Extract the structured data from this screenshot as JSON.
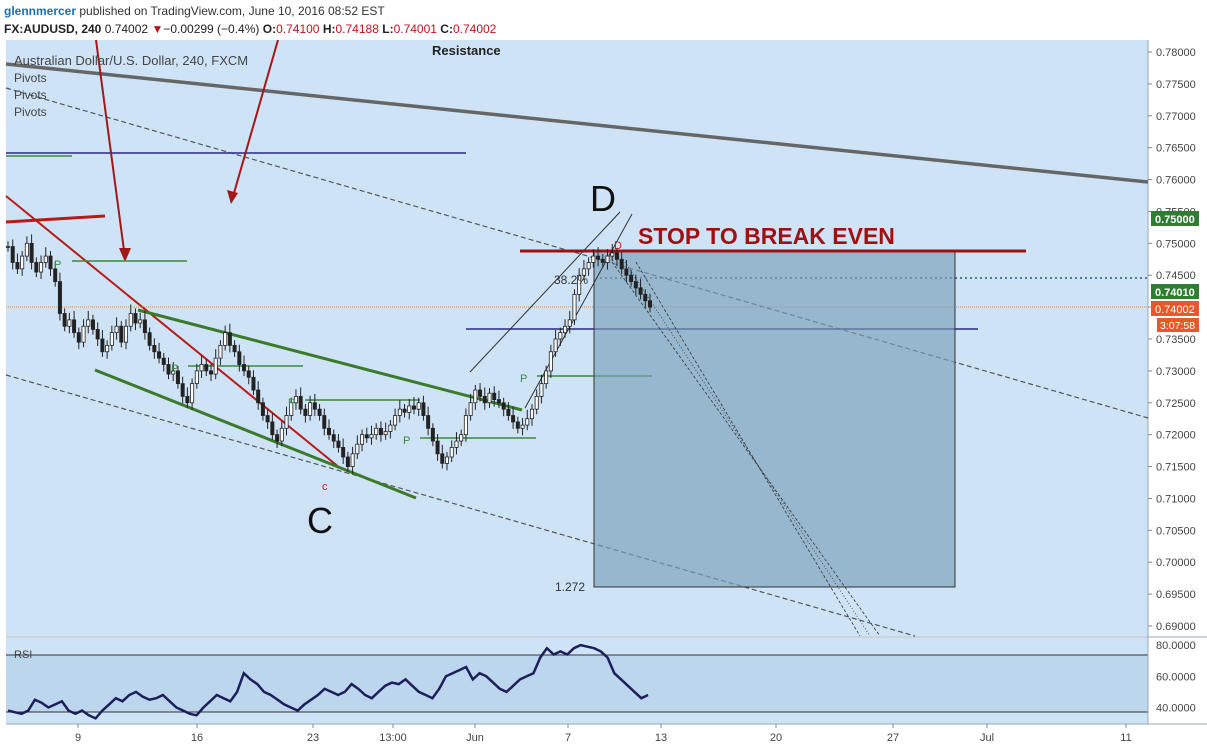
{
  "header": {
    "author": "glennmercer",
    "published_text": "published on TradingView.com, June 10, 2016 08:52 EST",
    "symbol": "FX:AUDUSD, 240",
    "last": "0.74002",
    "change_arrow": "▼",
    "change": "−0.00299 (−0.4%)",
    "o_label": "O:",
    "o_value": "0.74100",
    "h_label": "H:",
    "h_value": "0.74188",
    "l_label": "L:",
    "l_value": "0.74001",
    "c_label": "C:",
    "c_value": "0.74002"
  },
  "chart_data": {
    "type": "candlestick",
    "title": "Australian Dollar/U.S. Dollar, 240, FXCM",
    "indicators": [
      "Pivots",
      "Pivots",
      "Pivots"
    ],
    "annotations": {
      "resistance": "Resistance",
      "stop": "STOP TO BREAK EVEN",
      "point_c": "C",
      "point_d": "D",
      "small_c": "c",
      "small_d": "D",
      "fib_382": "38.2%",
      "fib_1272": "1.272",
      "pivot_marker": "P"
    },
    "y_ticks": [
      "0.78000",
      "0.77500",
      "0.77000",
      "0.76500",
      "0.76000",
      "0.75500",
      "0.75000",
      "0.74500",
      "0.74000",
      "0.73500",
      "0.73000",
      "0.72500",
      "0.72000",
      "0.71500",
      "0.71000",
      "0.70500",
      "0.70000",
      "0.69500",
      "0.69000"
    ],
    "ylim": [
      0.689,
      0.781
    ],
    "x_ticks": [
      "9",
      "16",
      "23",
      "13:00",
      "Jun",
      "7",
      "13",
      "20",
      "27",
      "Jul",
      "11"
    ],
    "price_labels": [
      {
        "text": "0.75000",
        "color": "#2e7d32"
      },
      {
        "text": "0.74010",
        "color": "#2e7d32"
      },
      {
        "text": "0.74002",
        "color": "#e55a2b"
      },
      {
        "text": "3:07:58",
        "color": "#e55a2b"
      }
    ],
    "closes": [
      0.7495,
      0.747,
      0.746,
      0.748,
      0.75,
      0.747,
      0.7455,
      0.747,
      0.748,
      0.746,
      0.744,
      0.739,
      0.737,
      0.738,
      0.736,
      0.7345,
      0.737,
      0.738,
      0.7365,
      0.735,
      0.733,
      0.734,
      0.736,
      0.737,
      0.7345,
      0.737,
      0.739,
      0.7375,
      0.738,
      0.736,
      0.734,
      0.733,
      0.732,
      0.731,
      0.7295,
      0.73,
      0.728,
      0.726,
      0.725,
      0.728,
      0.73,
      0.731,
      0.73,
      0.7295,
      0.732,
      0.734,
      0.736,
      0.734,
      0.733,
      0.731,
      0.73,
      0.729,
      0.727,
      0.725,
      0.723,
      0.722,
      0.72,
      0.719,
      0.721,
      0.723,
      0.725,
      0.726,
      0.724,
      0.723,
      0.725,
      0.724,
      0.723,
      0.721,
      0.72,
      0.719,
      0.718,
      0.7165,
      0.715,
      0.717,
      0.7185,
      0.72,
      0.7195,
      0.72,
      0.721,
      0.72,
      0.7205,
      0.7215,
      0.723,
      0.724,
      0.7235,
      0.7245,
      0.724,
      0.725,
      0.723,
      0.721,
      0.719,
      0.717,
      0.7155,
      0.7165,
      0.718,
      0.719,
      0.72,
      0.723,
      0.725,
      0.727,
      0.726,
      0.725,
      0.7265,
      0.7255,
      0.725,
      0.724,
      0.723,
      0.722,
      0.721,
      0.7215,
      0.7225,
      0.724,
      0.726,
      0.728,
      0.73,
      0.733,
      0.735,
      0.736,
      0.737,
      0.738,
      0.742,
      0.745,
      0.746,
      0.747,
      0.748,
      0.7475,
      0.747,
      0.748,
      0.7485,
      0.7475,
      0.746,
      0.745,
      0.744,
      0.743,
      0.742,
      0.741,
      0.74
    ],
    "rsi": {
      "label": "RSI",
      "ylim": [
        32,
        82
      ],
      "ticks": [
        "80.0000",
        "60.0000",
        "40.0000"
      ],
      "bands": [
        70,
        30
      ],
      "values": [
        38,
        37,
        36,
        38,
        45,
        43,
        40,
        42,
        44,
        38,
        36,
        38,
        35,
        33,
        38,
        42,
        46,
        44,
        48,
        50,
        47,
        45,
        46,
        48,
        44,
        40,
        38,
        36,
        35,
        40,
        44,
        48,
        46,
        44,
        50,
        62,
        58,
        55,
        50,
        48,
        45,
        42,
        40,
        38,
        42,
        45,
        48,
        52,
        50,
        48,
        50,
        55,
        52,
        48,
        46,
        50,
        54,
        56,
        55,
        58,
        54,
        50,
        48,
        46,
        52,
        60,
        62,
        64,
        66,
        58,
        62,
        60,
        56,
        52,
        50,
        54,
        58,
        60,
        62,
        72,
        78,
        74,
        76,
        74,
        78,
        80,
        79,
        78,
        76,
        72,
        62,
        58,
        54,
        50,
        46,
        48
      ]
    }
  }
}
